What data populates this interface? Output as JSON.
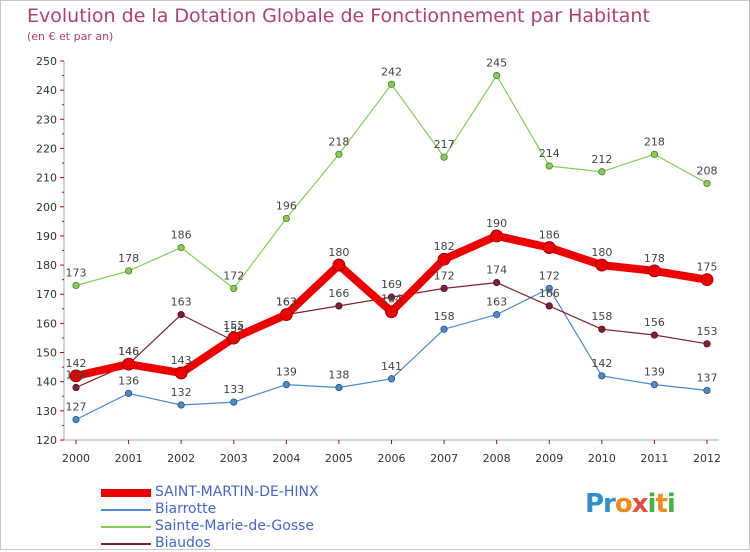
{
  "title": "Evolution de la Dotation Globale de Fonctionnement par Habitant",
  "subtitle": "(en € et par an)",
  "logo": "Proxiti",
  "chart_data": {
    "type": "line",
    "x": [
      "2000",
      "2001",
      "2002",
      "2003",
      "2004",
      "2005",
      "2006",
      "2007",
      "2008",
      "2009",
      "2010",
      "2011",
      "2012"
    ],
    "ylim": [
      120,
      250
    ],
    "yticks": [
      120,
      130,
      140,
      150,
      160,
      170,
      180,
      190,
      200,
      210,
      220,
      230,
      240,
      250
    ],
    "grid": false,
    "legend_position": "bottom-left",
    "series": [
      {
        "name": "SAINT-MARTIN-DE-HINX",
        "color": "#ee0000",
        "width": 8,
        "values": [
          142,
          146,
          143,
          155,
          163,
          180,
          164,
          182,
          190,
          186,
          180,
          178,
          175
        ]
      },
      {
        "name": "Biarrotte",
        "color": "#4a8ad0",
        "width": 1.2,
        "values": [
          127,
          136,
          132,
          133,
          139,
          138,
          141,
          158,
          163,
          172,
          142,
          139,
          137
        ]
      },
      {
        "name": "Sainte-Marie-de-Gosse",
        "color": "#80d050",
        "width": 1.2,
        "values": [
          173,
          178,
          186,
          172,
          196,
          218,
          242,
          217,
          245,
          214,
          212,
          218,
          208
        ]
      },
      {
        "name": "Biaudos",
        "color": "#802030",
        "width": 1.2,
        "values": [
          138,
          146,
          163,
          154,
          163,
          166,
          169,
          172,
          174,
          166,
          158,
          156,
          153
        ]
      }
    ]
  }
}
